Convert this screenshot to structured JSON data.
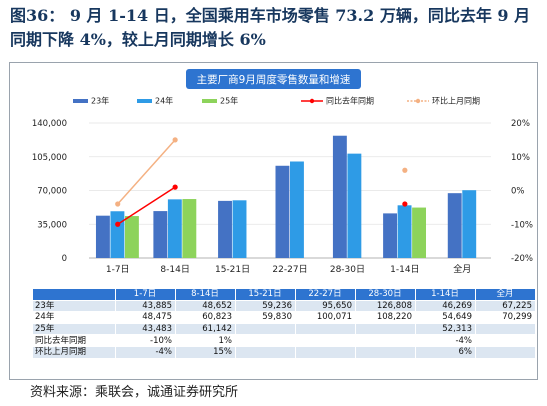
{
  "figure_title": "图36：  9 月 1-14 日，全国乘用车市场零售 73.2 万辆，同比去年 9 月同期下降 4%，较上月同期增长 6%",
  "source": "资料来源：乘联会，诚通证券研究所",
  "chart_data": {
    "type": "bar",
    "title": "主要厂商9月周度零售数量和增速",
    "categories": [
      "1-7日",
      "8-14日",
      "15-21日",
      "22-27日",
      "28-30日",
      "1-14日",
      "全月"
    ],
    "axis_categories": [
      "1-7日",
      "8-14日",
      "15-21日",
      "22-27日",
      "28-30日",
      "1-14日",
      "全月"
    ],
    "series": [
      {
        "name": "23年",
        "type": "bar",
        "color": "#4472C4",
        "values": [
          43885,
          48652,
          59236,
          95650,
          126808,
          46269,
          67225
        ]
      },
      {
        "name": "24年",
        "type": "bar",
        "color": "#2E9BE6",
        "values": [
          48475,
          60823,
          59830,
          100071,
          108220,
          54649,
          70299
        ]
      },
      {
        "name": "25年",
        "type": "bar",
        "color": "#8DD35B",
        "values": [
          43483,
          61142,
          null,
          null,
          null,
          52313,
          null
        ]
      },
      {
        "name": "同比去年同期",
        "type": "line",
        "axis": "right",
        "color": "#FF0000",
        "values": [
          -0.1,
          0.01,
          null,
          null,
          null,
          -0.04,
          null
        ]
      },
      {
        "name": "环比上月同期",
        "type": "line",
        "axis": "right",
        "color": "#F4B183",
        "values": [
          -0.04,
          0.15,
          null,
          null,
          null,
          0.06,
          null
        ]
      }
    ],
    "y_left": {
      "min": 0,
      "max": 140000,
      "ticks": [
        "0",
        "35,000",
        "70,000",
        "105,000",
        "140,000"
      ]
    },
    "y_right": {
      "min": -0.2,
      "max": 0.2,
      "ticks": [
        "-20%",
        "-10%",
        "0%",
        "10%",
        "20%"
      ]
    },
    "legend": "top"
  },
  "table": {
    "header": [
      "",
      "1-7日",
      "8-14日",
      "15-21日",
      "22-27日",
      "28-30日",
      "1-14日",
      "全月"
    ],
    "rows": [
      [
        "23年",
        "43,885",
        "48,652",
        "59,236",
        "95,650",
        "126,808",
        "46,269",
        "67,225"
      ],
      [
        "24年",
        "48,475",
        "60,823",
        "59,830",
        "100,071",
        "108,220",
        "54,649",
        "70,299"
      ],
      [
        "25年",
        "43,483",
        "61,142",
        "",
        "",
        "",
        "52,313",
        ""
      ],
      [
        "同比去年同期",
        "-10%",
        "1%",
        "",
        "",
        "",
        "-4%",
        ""
      ],
      [
        "环比上月同期",
        "-4%",
        "15%",
        "",
        "",
        "",
        "6%",
        ""
      ]
    ]
  }
}
